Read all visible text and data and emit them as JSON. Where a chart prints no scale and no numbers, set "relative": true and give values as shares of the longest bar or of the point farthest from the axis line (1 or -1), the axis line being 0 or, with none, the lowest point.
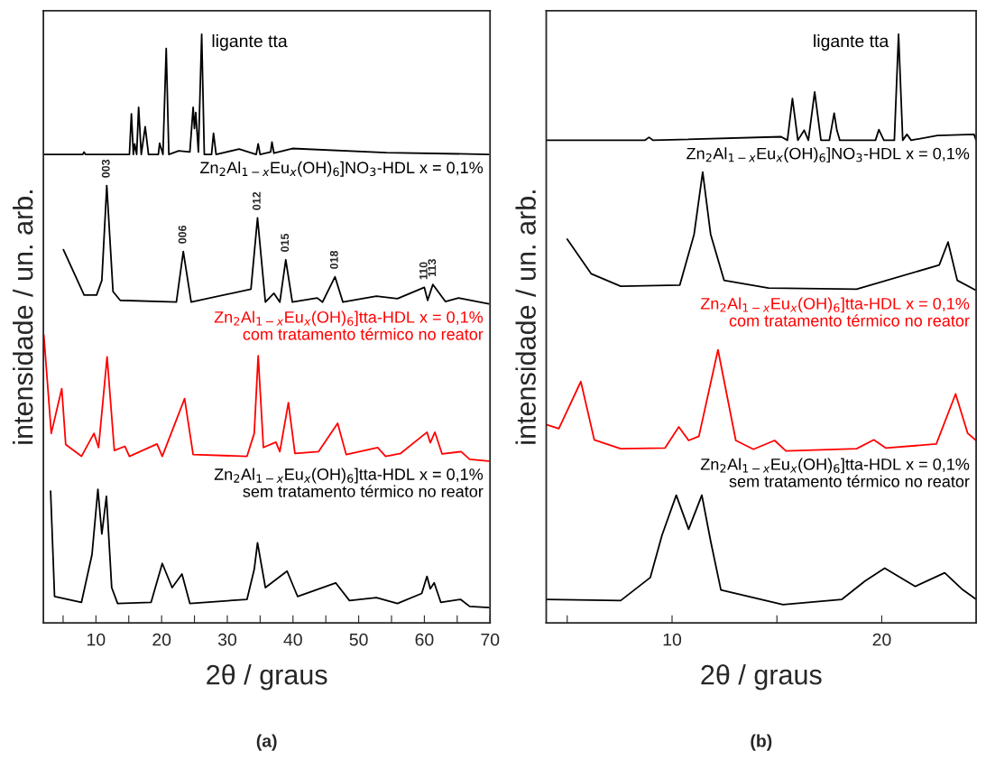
{
  "chart_data": [
    {
      "type": "line",
      "title": "(a)",
      "xlabel": "2θ / graus",
      "ylabel": "intensidade / un. arb.",
      "relative": true,
      "legend": false,
      "grid": false,
      "xlim": [
        2,
        70
      ],
      "xticks": [
        {
          "value": 5,
          "label": null
        },
        10,
        {
          "value": 15,
          "label": null
        },
        20,
        {
          "value": 25,
          "label": null
        },
        30,
        {
          "value": 35,
          "label": null
        },
        40,
        {
          "value": 45,
          "label": null
        },
        50,
        {
          "value": 55,
          "label": null
        },
        60,
        {
          "value": 65,
          "label": null
        },
        70
      ],
      "series": [
        {
          "name": "ligante tta",
          "color": "#000000",
          "x": [
            2.1,
            8.0,
            8.2,
            8.4,
            15.1,
            15.4,
            15.7,
            15.9,
            16.2,
            16.5,
            16.9,
            17.5,
            18.0,
            19.5,
            19.7,
            20.2,
            20.7,
            21.1,
            22.6,
            24.3,
            24.8,
            25.0,
            25.2,
            25.6,
            26.1,
            26.5,
            27.6,
            27.9,
            28.3,
            31.8,
            34.4,
            34.7,
            35.0,
            36.6,
            36.8,
            37.1,
            39.9,
            54.2,
            69.8
          ],
          "values": [
            0.796,
            0.796,
            0.8,
            0.796,
            0.796,
            0.865,
            0.796,
            0.814,
            0.796,
            0.876,
            0.796,
            0.843,
            0.796,
            0.796,
            0.815,
            0.796,
            0.976,
            0.796,
            0.802,
            0.8,
            0.876,
            0.84,
            0.867,
            0.8,
            1.0,
            0.796,
            0.796,
            0.832,
            0.796,
            0.805,
            0.796,
            0.814,
            0.796,
            0.8,
            0.817,
            0.798,
            0.806,
            0.799,
            0.796
          ]
        },
        {
          "name": "Zn$_{2}$Al$_{1−x}$Eu$_{x}$(OH)$_{6}$]NO$_{3}$-HDL x = 0,1%",
          "color": "#000000",
          "x": [
            5.05,
            8.2,
            10.1,
            10.9,
            11.65,
            12.6,
            13.7,
            22.25,
            23.3,
            24.5,
            33.6,
            34.6,
            35.8,
            37.1,
            38.0,
            38.9,
            39.9,
            43.7,
            44.5,
            46.4,
            47.6,
            52.7,
            55.9,
            60.0,
            60.5,
            61.3,
            63.2,
            65.2,
            69.8
          ],
          "values": [
            0.634,
            0.557,
            0.557,
            0.582,
            0.743,
            0.563,
            0.548,
            0.545,
            0.631,
            0.545,
            0.567,
            0.688,
            0.545,
            0.56,
            0.545,
            0.617,
            0.545,
            0.552,
            0.545,
            0.588,
            0.545,
            0.555,
            0.551,
            0.57,
            0.548,
            0.575,
            0.546,
            0.552,
            0.542
          ]
        },
        {
          "name": "Zn$_{2}$Al$_{1−x}$Eu$_{x}$(OH)$_{6}$]tta-HDL x = 0,1%\ncom tratamento térmico no reator",
          "color": "#ff0000",
          "x": [
            2.07,
            3.2,
            4.8,
            5.4,
            7.8,
            9.7,
            10.4,
            11.7,
            12.8,
            14.4,
            15.1,
            19.3,
            20.1,
            23.5,
            24.8,
            33.0,
            34.1,
            34.7,
            35.5,
            37.4,
            38.0,
            39.3,
            40.3,
            43.9,
            46.8,
            48.1,
            52.9,
            54.1,
            56.4,
            60.4,
            60.9,
            61.6,
            62.7,
            65.6,
            66.9,
            69.8
          ],
          "values": [
            0.489,
            0.322,
            0.398,
            0.303,
            0.283,
            0.322,
            0.298,
            0.452,
            0.293,
            0.3,
            0.283,
            0.304,
            0.283,
            0.381,
            0.286,
            0.283,
            0.322,
            0.454,
            0.298,
            0.307,
            0.291,
            0.374,
            0.288,
            0.291,
            0.339,
            0.286,
            0.298,
            0.283,
            0.288,
            0.324,
            0.306,
            0.324,
            0.287,
            0.291,
            0.278,
            0.275
          ]
        },
        {
          "name": "Zn$_{2}$Al$_{1−x}$Eu$_{x}$(OH)$_{6}$]tta-HDL x = 0,1%\nsem tratamento térmico no reator",
          "color": "#000000",
          "x": [
            3.1,
            3.7,
            7.8,
            9.4,
            10.3,
            10.9,
            11.6,
            12.4,
            13.3,
            18.4,
            20.1,
            21.6,
            23.1,
            24.3,
            33.0,
            34.1,
            34.6,
            35.8,
            39.1,
            40.7,
            46.5,
            48.6,
            52.7,
            55.9,
            59.6,
            60.4,
            60.9,
            61.5,
            62.5,
            65.5,
            66.9,
            69.8
          ],
          "values": [
            0.224,
            0.045,
            0.035,
            0.116,
            0.227,
            0.151,
            0.215,
            0.06,
            0.033,
            0.035,
            0.101,
            0.06,
            0.083,
            0.033,
            0.04,
            0.091,
            0.136,
            0.06,
            0.088,
            0.045,
            0.068,
            0.038,
            0.043,
            0.033,
            0.05,
            0.079,
            0.058,
            0.068,
            0.035,
            0.04,
            0.028,
            0.026
          ]
        }
      ],
      "annotations": [
        {
          "text": "003",
          "x": 11.65,
          "y": 0.743
        },
        {
          "text": "006",
          "x": 23.3,
          "y": 0.631
        },
        {
          "text": "012",
          "x": 34.6,
          "y": 0.688
        },
        {
          "text": "015",
          "x": 38.9,
          "y": 0.617
        },
        {
          "text": "018",
          "x": 46.4,
          "y": 0.588
        },
        {
          "text": "110",
          "x": 60.0,
          "y": 0.57
        },
        {
          "text": "113",
          "x": 61.3,
          "y": 0.575
        }
      ]
    },
    {
      "type": "line",
      "title": "(b)",
      "xlabel": "2θ / graus",
      "ylabel": "intensidade / un. arb.",
      "relative": true,
      "legend": false,
      "grid": false,
      "xlim": [
        4,
        24.5
      ],
      "xticks": [
        {
          "value": 5,
          "label": null
        },
        10,
        {
          "value": 15,
          "label": null
        },
        20
      ],
      "series": [
        {
          "name": "ligante tta",
          "color": "#000000",
          "x": [
            4.0,
            8.7,
            8.9,
            9.1,
            15.2,
            15.5,
            15.74,
            16.0,
            16.3,
            16.5,
            16.8,
            17.1,
            17.5,
            17.73,
            17.86,
            18.0,
            19.7,
            19.86,
            20.1,
            20.6,
            20.8,
            21.0,
            21.2,
            21.4,
            22.65,
            24.4,
            24.5
          ],
          "values": [
            0.82,
            0.82,
            0.825,
            0.82,
            0.826,
            0.82,
            0.891,
            0.82,
            0.837,
            0.82,
            0.902,
            0.82,
            0.82,
            0.866,
            0.837,
            0.82,
            0.82,
            0.838,
            0.82,
            0.82,
            1.0,
            0.82,
            0.83,
            0.82,
            0.828,
            0.83,
            0.82
          ]
        },
        {
          "name": "Zn$_{2}$Al$_{1−x}$Eu$_{x}$(OH)$_{6}$]NO$_{3}$-HDL x = 0,1%",
          "color": "#000000",
          "x": [
            5.0,
            6.15,
            7.55,
            10.37,
            11.05,
            11.46,
            11.84,
            12.48,
            14.6,
            18.8,
            22.74,
            23.16,
            23.6,
            24.5
          ],
          "values": [
            0.652,
            0.593,
            0.572,
            0.574,
            0.66,
            0.766,
            0.66,
            0.582,
            0.569,
            0.567,
            0.608,
            0.647,
            0.582,
            0.565
          ]
        },
        {
          "name": "Zn$_{2}$Al$_{1−x}$Eu$_{x}$(OH)$_{6}$]tta-HDL x = 0,1%\ncom tratamento térmico no reator",
          "color": "#ff0000",
          "x": [
            4.0,
            4.6,
            5.65,
            6.29,
            7.55,
            9.66,
            10.32,
            10.79,
            11.28,
            12.19,
            13.04,
            13.88,
            14.89,
            15.43,
            18.8,
            19.62,
            20.2,
            22.6,
            23.52,
            24.1,
            24.5
          ],
          "values": [
            0.337,
            0.33,
            0.41,
            0.311,
            0.296,
            0.297,
            0.333,
            0.31,
            0.317,
            0.464,
            0.31,
            0.295,
            0.31,
            0.292,
            0.296,
            0.311,
            0.297,
            0.304,
            0.389,
            0.322,
            0.31
          ]
        },
        {
          "name": "Zn$_{2}$Al$_{1−x}$Eu$_{x}$(OH)$_{6}$]tta-HDL x = 0,1%\nsem tratamento térmico no reator",
          "color": "#000000",
          "x": [
            4.0,
            7.55,
            8.96,
            9.52,
            10.2,
            10.79,
            11.42,
            11.84,
            12.33,
            15.29,
            18.1,
            19.2,
            20.14,
            21.6,
            23.0,
            23.87,
            24.5
          ],
          "values": [
            0.04,
            0.038,
            0.077,
            0.149,
            0.217,
            0.159,
            0.217,
            0.139,
            0.056,
            0.031,
            0.04,
            0.071,
            0.093,
            0.062,
            0.085,
            0.056,
            0.04
          ]
        }
      ]
    }
  ]
}
